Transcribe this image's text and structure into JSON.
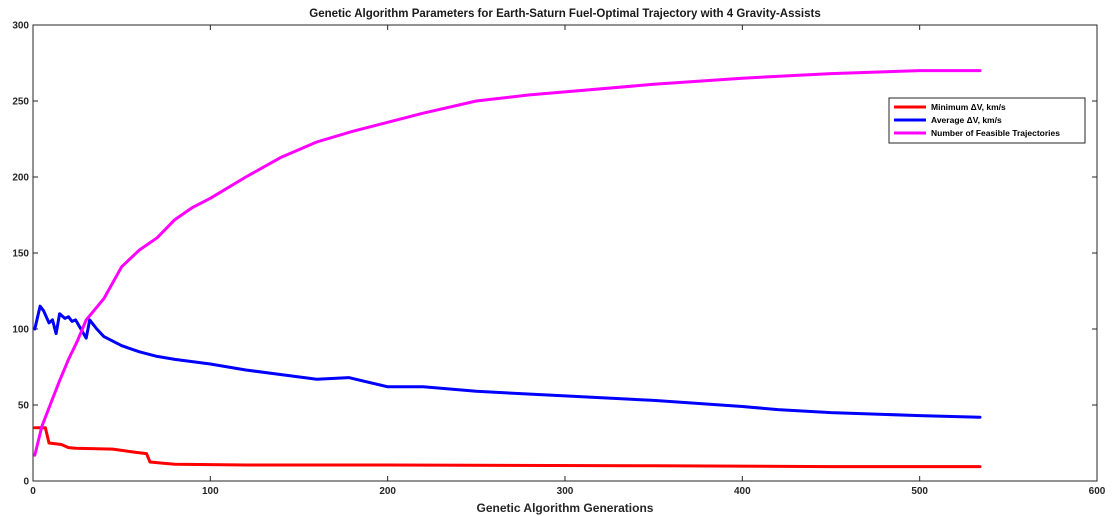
{
  "chart_data": {
    "type": "line",
    "title": "Genetic Algorithm Parameters for Earth-Saturn Fuel-Optimal Trajectory with 4 Gravity-Assists",
    "xlabel": "Genetic Algorithm Generations",
    "ylabel": "",
    "xlim": [
      0,
      600
    ],
    "ylim": [
      0,
      300
    ],
    "xticks": [
      0,
      100,
      200,
      300,
      400,
      500,
      600
    ],
    "yticks": [
      0,
      50,
      100,
      150,
      200,
      250,
      300
    ],
    "grid": false,
    "legend_position": "top-right",
    "series": [
      {
        "name": "Minimum ΔV, km/s",
        "color": "#ff0000",
        "x": [
          1,
          7,
          9,
          16,
          20,
          24,
          45,
          57,
          64,
          66,
          75,
          80,
          120,
          200,
          350,
          450,
          534
        ],
        "y": [
          35,
          35,
          25,
          24,
          22,
          21.5,
          21,
          19,
          18,
          12.5,
          11.5,
          11,
          10.5,
          10.5,
          10,
          9.5,
          9.5
        ]
      },
      {
        "name": "Average ΔV, km/s",
        "color": "#0000ff",
        "x": [
          1,
          4,
          6,
          9,
          11,
          13,
          15,
          18,
          20,
          22,
          24,
          30,
          32,
          36,
          40,
          50,
          60,
          70,
          80,
          100,
          120,
          140,
          160,
          178,
          200,
          220,
          250,
          300,
          350,
          400,
          420,
          450,
          500,
          534
        ],
        "y": [
          100,
          115,
          112,
          104,
          106,
          97,
          110,
          107,
          108,
          105,
          106,
          94,
          106,
          100,
          95,
          89,
          85,
          82,
          80,
          77,
          73,
          70,
          67,
          68,
          62,
          62,
          59,
          56,
          53,
          49,
          47,
          45,
          43,
          42
        ]
      },
      {
        "name": "Number of Feasible Trajectories",
        "color": "#ff00ff",
        "x": [
          1,
          5,
          10,
          15,
          20,
          25,
          30,
          40,
          50,
          60,
          70,
          80,
          90,
          100,
          120,
          140,
          160,
          180,
          200,
          220,
          250,
          280,
          300,
          350,
          400,
          450,
          500,
          534
        ],
        "y": [
          17,
          36,
          51,
          66,
          80,
          92,
          106,
          120,
          141,
          152,
          160,
          172,
          180,
          186,
          200,
          213,
          223,
          230,
          236,
          242,
          250,
          254,
          256,
          261,
          265,
          268,
          270,
          270
        ]
      }
    ]
  }
}
